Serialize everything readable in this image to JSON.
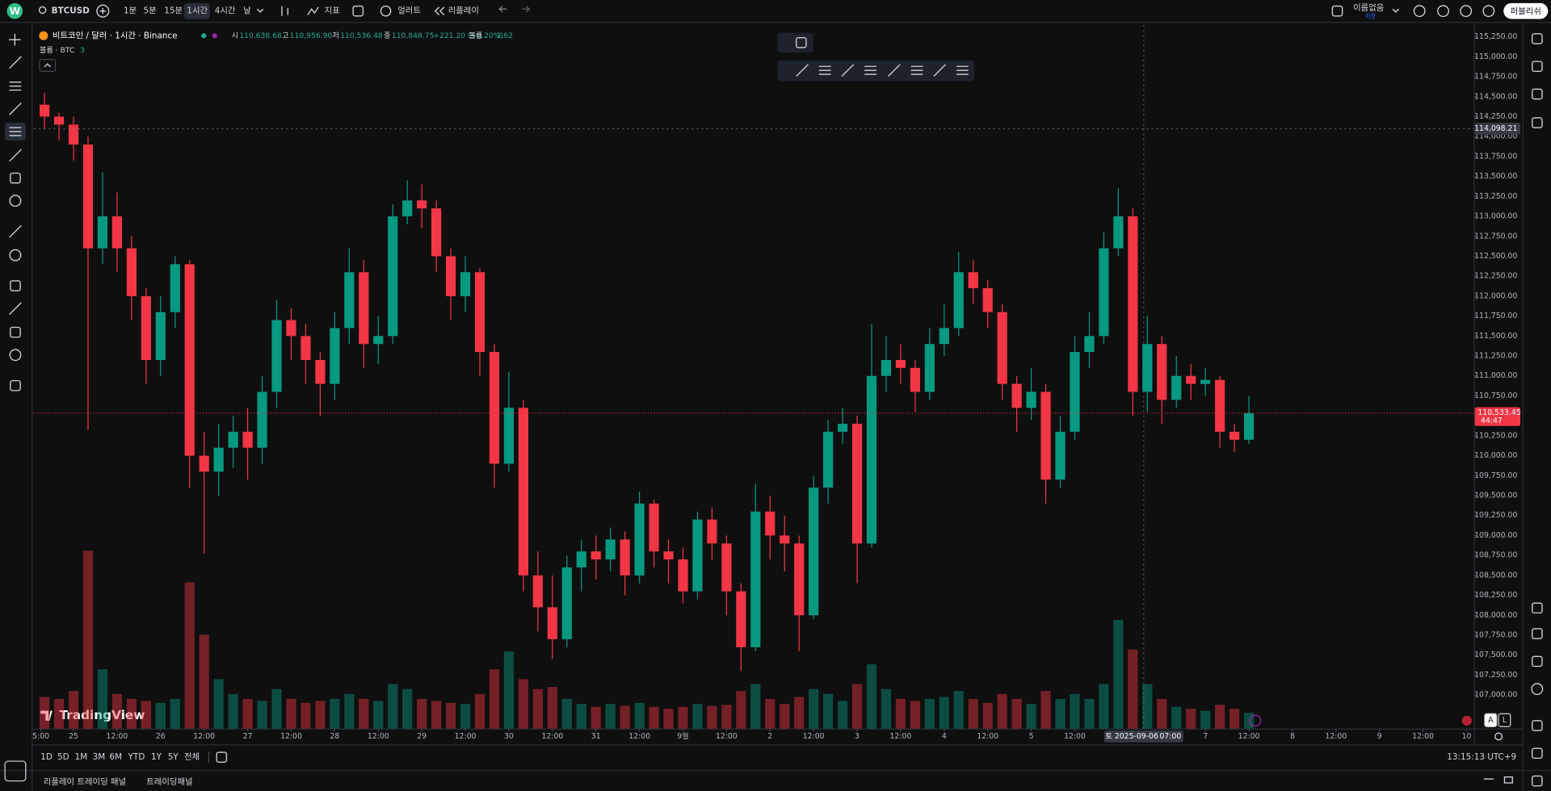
{
  "top_bar": {
    "logo": "W",
    "symbol": "BTCUSD",
    "intervals": [
      "1분",
      "5분",
      "15분",
      "1시간",
      "4시간",
      "날"
    ],
    "indicators": "지표",
    "alert": "얼러트",
    "replay": "리플레이",
    "layout_name": "이름없음",
    "save": "저장",
    "publish": "퍼블리쉬"
  },
  "legend": {
    "symbol": "비트코인 / 달러 · 1시간 · Binance",
    "ohlc": [
      {
        "label": "시",
        "value": "110,638.68"
      },
      {
        "label": "고",
        "value": "110,956.90"
      },
      {
        "label": "저",
        "value": "110,536.48"
      },
      {
        "label": "종",
        "value": "110,848.75"
      }
    ],
    "change": "+221.20 (+0.20%)",
    "volume_label": "볼륨",
    "volume_value": "2.62",
    "volume_series": "볼륨 · BTC",
    "volume_series_value": "3"
  },
  "chart_data": {
    "type": "candlestick",
    "watermark": "TradingView",
    "up_color": "#089981",
    "down_color": "#f23645",
    "grid": false,
    "x": [
      -10,
      -6,
      -2,
      2,
      6,
      10,
      14,
      18,
      22,
      26,
      30,
      34,
      38,
      42,
      46,
      50,
      54,
      58,
      62,
      66,
      70,
      74,
      78,
      82,
      86,
      90,
      94,
      98,
      102,
      106,
      110,
      114,
      118,
      122,
      126,
      130,
      134,
      138,
      142,
      146,
      150,
      154,
      158,
      162,
      166,
      170,
      174,
      178,
      182,
      186,
      190,
      194,
      198,
      202,
      206,
      210,
      214,
      218,
      222,
      226,
      230,
      234,
      238,
      242,
      246,
      250,
      254,
      258,
      262,
      266,
      270,
      274,
      278,
      282,
      286,
      290,
      294,
      298,
      302,
      306,
      310,
      314,
      318,
      322
    ],
    "open": [
      114400,
      114250,
      114150,
      113900,
      112600,
      113000,
      112600,
      112000,
      111200,
      111800,
      112400,
      110000,
      109800,
      110100,
      110300,
      110100,
      110800,
      111700,
      111500,
      111200,
      110900,
      111600,
      112300,
      111400,
      111500,
      113000,
      113200,
      113100,
      112500,
      112000,
      112300,
      111300,
      109900,
      110600,
      108500,
      108100,
      107700,
      108600,
      108800,
      108700,
      108950,
      108500,
      109400,
      108800,
      108700,
      108300,
      109200,
      108900,
      108300,
      107600,
      109300,
      109000,
      108900,
      108000,
      109600,
      110300,
      110400,
      108900,
      111000,
      111200,
      111100,
      110800,
      111400,
      111600,
      112300,
      112100,
      111800,
      110900,
      110600,
      110800,
      109700,
      110300,
      111300,
      111500,
      112600,
      113000,
      110800,
      111400,
      110700,
      111000,
      110900,
      110950,
      110300,
      110200
    ],
    "high": [
      114550,
      114300,
      114250,
      114000,
      113550,
      113300,
      112750,
      112100,
      112000,
      112500,
      112450,
      110300,
      110400,
      110500,
      110600,
      111000,
      111950,
      111850,
      111650,
      111300,
      111800,
      112600,
      112450,
      111750,
      113150,
      113450,
      113400,
      113200,
      112600,
      112500,
      112350,
      111400,
      111050,
      110700,
      108800,
      108500,
      108750,
      108950,
      109000,
      109100,
      109050,
      109550,
      109450,
      108950,
      108850,
      109300,
      109350,
      109000,
      108400,
      109650,
      109500,
      109250,
      109000,
      109750,
      110450,
      110600,
      110500,
      111650,
      111500,
      111400,
      111200,
      111600,
      111900,
      112550,
      112450,
      112200,
      111900,
      111000,
      111100,
      110900,
      110500,
      111500,
      111800,
      112800,
      113350,
      113100,
      111750,
      111500,
      111250,
      111150,
      111100,
      111000,
      110400,
      110750
    ],
    "low": [
      114100,
      113950,
      113700,
      110320,
      112400,
      112300,
      111700,
      110900,
      111000,
      111600,
      109600,
      108770,
      109500,
      109850,
      109700,
      109900,
      110600,
      111200,
      110900,
      110500,
      110700,
      111400,
      111100,
      111150,
      111400,
      112900,
      112850,
      112300,
      111700,
      111800,
      111000,
      109600,
      109800,
      108300,
      107800,
      107450,
      107600,
      108300,
      108450,
      108550,
      108250,
      108400,
      108600,
      108400,
      108150,
      108200,
      108700,
      108000,
      107300,
      107550,
      108700,
      108550,
      107550,
      107950,
      109400,
      110150,
      108400,
      108850,
      110800,
      110900,
      110550,
      110700,
      111250,
      111500,
      111900,
      111600,
      110700,
      110300,
      110450,
      109400,
      109600,
      110200,
      111100,
      111400,
      112500,
      110500,
      110550,
      110400,
      110600,
      110700,
      110750,
      110100,
      110050,
      110150
    ],
    "close": [
      114250,
      114150,
      113900,
      112600,
      113000,
      112600,
      112000,
      111200,
      111800,
      112400,
      110000,
      109800,
      110100,
      110300,
      110100,
      110800,
      111700,
      111500,
      111200,
      110900,
      111600,
      112300,
      111400,
      111500,
      113000,
      113200,
      113100,
      112500,
      112000,
      112300,
      111300,
      109900,
      110600,
      108500,
      108100,
      107700,
      108600,
      108800,
      108700,
      108950,
      108500,
      109400,
      108800,
      108700,
      108300,
      109200,
      108900,
      108300,
      107600,
      109300,
      109000,
      108900,
      108000,
      109600,
      110300,
      110400,
      108900,
      111000,
      111200,
      111100,
      110800,
      111400,
      111600,
      112300,
      112100,
      111800,
      110900,
      110600,
      110800,
      109700,
      110300,
      111300,
      111500,
      112600,
      113000,
      110800,
      111400,
      110700,
      111000,
      110900,
      110950,
      110300,
      110200,
      110533.45
    ],
    "volume": [
      320,
      300,
      380,
      1800,
      600,
      350,
      300,
      280,
      260,
      300,
      1480,
      950,
      500,
      350,
      300,
      280,
      400,
      300,
      260,
      280,
      300,
      350,
      300,
      280,
      450,
      400,
      300,
      280,
      260,
      250,
      350,
      600,
      780,
      500,
      400,
      420,
      300,
      250,
      220,
      250,
      230,
      260,
      220,
      200,
      220,
      250,
      230,
      240,
      380,
      450,
      300,
      250,
      320,
      400,
      350,
      280,
      450,
      650,
      400,
      300,
      280,
      300,
      320,
      380,
      300,
      260,
      350,
      300,
      250,
      380,
      300,
      350,
      300,
      450,
      1100,
      800,
      450,
      300,
      220,
      200,
      180,
      240,
      200,
      160
    ],
    "xlim": [
      -11,
      386
    ],
    "xticks": [
      {
        "value": -9,
        "label": "5:00"
      },
      {
        "value": 0,
        "label": "25"
      },
      {
        "value": 12,
        "label": "12:00"
      },
      {
        "value": 24,
        "label": "26"
      },
      {
        "value": 36,
        "label": "12:00"
      },
      {
        "value": 48,
        "label": "27"
      },
      {
        "value": 60,
        "label": "12:00"
      },
      {
        "value": 72,
        "label": "28"
      },
      {
        "value": 84,
        "label": "12:00"
      },
      {
        "value": 96,
        "label": "29"
      },
      {
        "value": 108,
        "label": "12:00"
      },
      {
        "value": 120,
        "label": "30"
      },
      {
        "value": 132,
        "label": "12:00"
      },
      {
        "value": 144,
        "label": "31"
      },
      {
        "value": 156,
        "label": "12:00"
      },
      {
        "value": 168,
        "label": "9월"
      },
      {
        "value": 180,
        "label": "12:00"
      },
      {
        "value": 192,
        "label": "2"
      },
      {
        "value": 204,
        "label": "12:00"
      },
      {
        "value": 216,
        "label": "3"
      },
      {
        "value": 228,
        "label": "12:00"
      },
      {
        "value": 240,
        "label": "4"
      },
      {
        "value": 252,
        "label": "12:00"
      },
      {
        "value": 264,
        "label": "5"
      },
      {
        "value": 276,
        "label": "12:00"
      },
      {
        "value": 312,
        "label": "7"
      },
      {
        "value": 324,
        "label": "12:00"
      },
      {
        "value": 336,
        "label": "8"
      },
      {
        "value": 348,
        "label": "12:00"
      },
      {
        "value": 360,
        "label": "9"
      },
      {
        "value": 372,
        "label": "12:00"
      },
      {
        "value": 384,
        "label": "10"
      }
    ],
    "ylim": [
      106580,
      115400
    ],
    "yticks": [
      {
        "value": 107000,
        "label": "107,000.00"
      },
      {
        "value": 107250,
        "label": "107,250.00"
      },
      {
        "value": 107500,
        "label": "107,500.00"
      },
      {
        "value": 107750,
        "label": "107,750.00"
      },
      {
        "value": 108000,
        "label": "108,000.00"
      },
      {
        "value": 108250,
        "label": "108,250.00"
      },
      {
        "value": 108500,
        "label": "108,500.00"
      },
      {
        "value": 108750,
        "label": "108,750.00"
      },
      {
        "value": 109000,
        "label": "109,000.00"
      },
      {
        "value": 109250,
        "label": "109,250.00"
      },
      {
        "value": 109500,
        "label": "109,500.00"
      },
      {
        "value": 109750,
        "label": "109,750.00"
      },
      {
        "value": 110000,
        "label": "110,000.00"
      },
      {
        "value": 110250,
        "label": "110,250.00"
      },
      {
        "value": 110500,
        "label": "110,500.00"
      },
      {
        "value": 110750,
        "label": "110,750.00"
      },
      {
        "value": 111000,
        "label": "111,000.00"
      },
      {
        "value": 111250,
        "label": "111,250.00"
      },
      {
        "value": 111500,
        "label": "111,500.00"
      },
      {
        "value": 111750,
        "label": "111,750.00"
      },
      {
        "value": 112000,
        "label": "112,000.00"
      },
      {
        "value": 112250,
        "label": "112,250.00"
      },
      {
        "value": 112500,
        "label": "112,500.00"
      },
      {
        "value": 112750,
        "label": "112,750.00"
      },
      {
        "value": 113000,
        "label": "113,000.00"
      },
      {
        "value": 113250,
        "label": "113,250.00"
      },
      {
        "value": 113500,
        "label": "113,500.00"
      },
      {
        "value": 113750,
        "label": "113,750.00"
      },
      {
        "value": 114000,
        "label": "114,000.00"
      },
      {
        "value": 114250,
        "label": "114,250.00"
      },
      {
        "value": 114500,
        "label": "114,500.00"
      },
      {
        "value": 114750,
        "label": "114,750.00"
      },
      {
        "value": 115000,
        "label": "115,000.00"
      },
      {
        "value": 115250,
        "label": "115,250.00"
      }
    ],
    "crosshair": {
      "price": {
        "value": 114098.21,
        "label": "114,098.21"
      },
      "time": {
        "value": 295,
        "label": "07:00"
      },
      "date": "토 2025-09-06"
    },
    "last_price": {
      "value": 110533.45,
      "label": "110,533.45"
    },
    "countdown": "44:47"
  },
  "chart_buttons": [
    "A",
    "L"
  ],
  "bottom_bar": {
    "ranges": [
      "1D",
      "5D",
      "1M",
      "3M",
      "6M",
      "YTD",
      "1Y",
      "5Y",
      "전체"
    ],
    "clock": "13:15:13 UTC+9",
    "panels": [
      "리플레이 트레이딩 패널",
      "트레이딩패널"
    ]
  }
}
